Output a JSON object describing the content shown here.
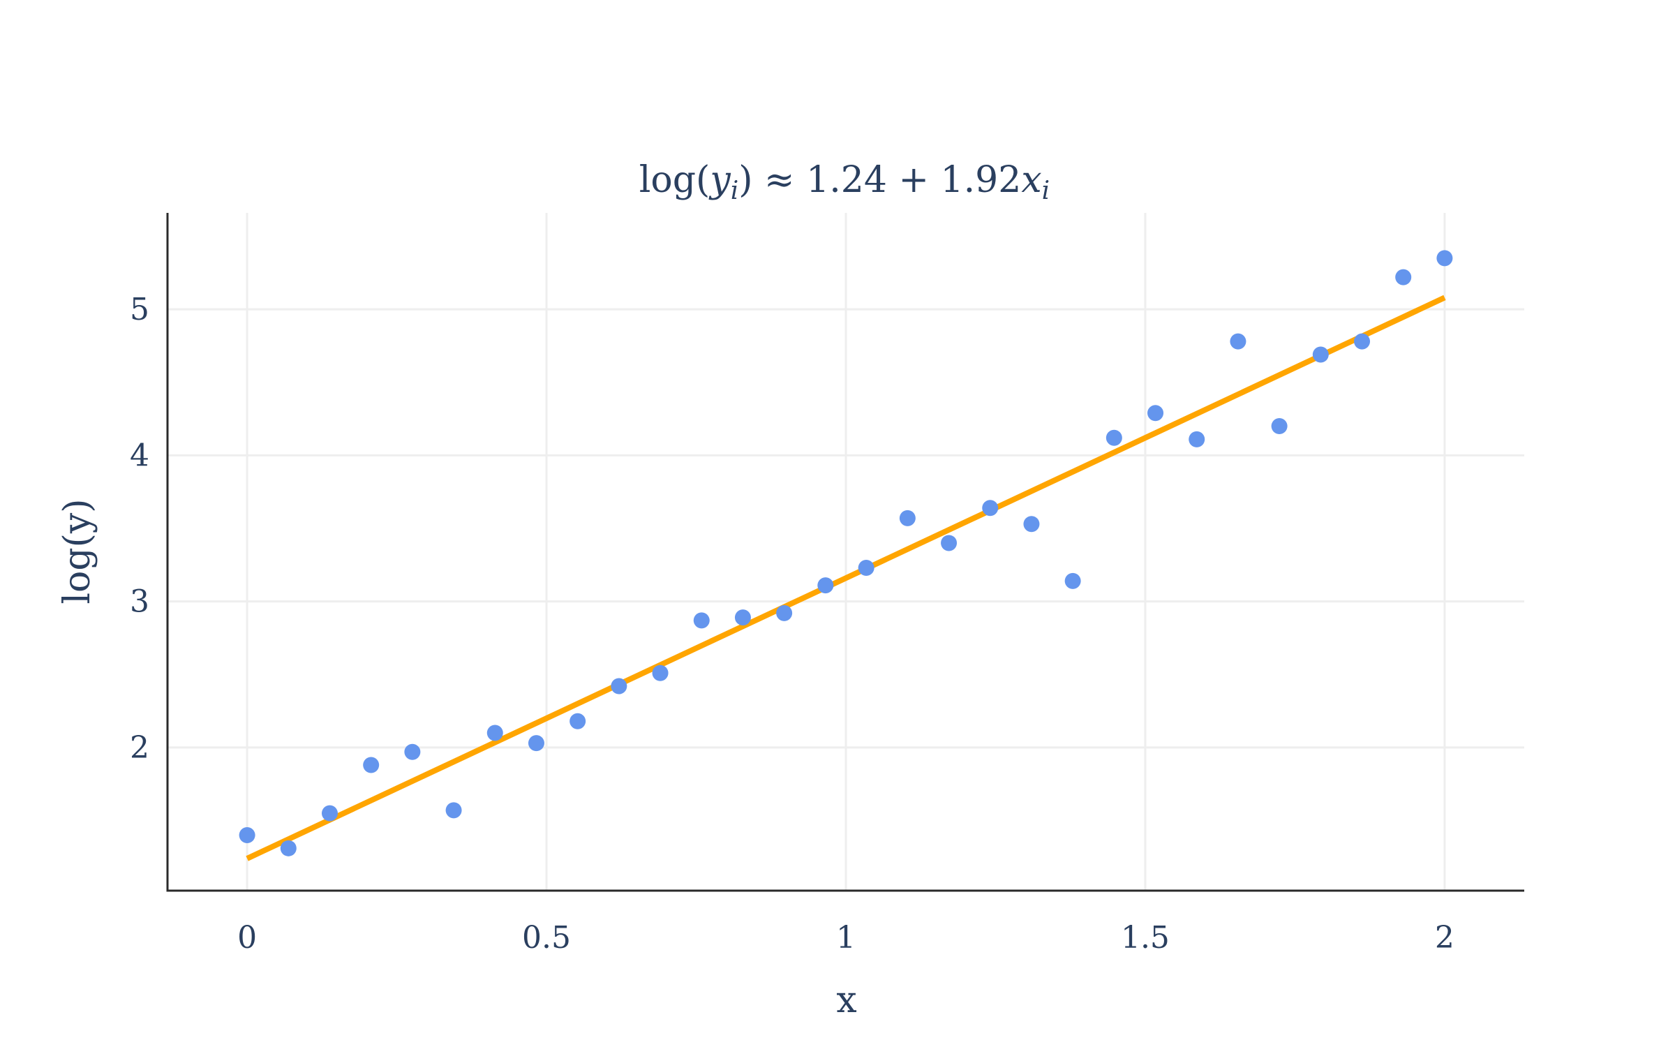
{
  "chart_data": {
    "type": "scatter",
    "title": "log(y_i) ≈ 1.24 + 1.92x_i",
    "title_parts": {
      "lhs_fn": "log(",
      "lhs_var": "y",
      "lhs_sub": "i",
      "lhs_close": ")",
      "rhs_const": " ≈ 1.24 + 1.92",
      "rhs_var": "x",
      "rhs_sub": "i"
    },
    "xlabel": "x",
    "ylabel": "log(y)",
    "xlim": [
      -0.133,
      2.133
    ],
    "ylim": [
      1.02,
      5.66
    ],
    "xticks": [
      0,
      0.5,
      1,
      1.5,
      2
    ],
    "xtick_labels": [
      "0",
      "0.5",
      "1",
      "1.5",
      "2"
    ],
    "yticks": [
      2,
      3,
      4,
      5
    ],
    "ytick_labels": [
      "2",
      "3",
      "4",
      "5"
    ],
    "grid": true,
    "colors": {
      "points": "#6495ed",
      "fit_line": "#ffa500",
      "text": "#2a3f5f"
    },
    "series": [
      {
        "kind": "scatter",
        "x": [
          0,
          0.069,
          0.138,
          0.207,
          0.276,
          0.345,
          0.414,
          0.483,
          0.552,
          0.621,
          0.69,
          0.759,
          0.828,
          0.897,
          0.966,
          1.034,
          1.103,
          1.172,
          1.241,
          1.31,
          1.379,
          1.448,
          1.517,
          1.586,
          1.655,
          1.724,
          1.793,
          1.862,
          1.931,
          2.0
        ],
        "y": [
          1.4,
          1.31,
          1.55,
          1.88,
          1.97,
          1.57,
          2.1,
          2.03,
          2.18,
          2.42,
          2.51,
          2.87,
          2.89,
          2.92,
          3.11,
          3.23,
          3.57,
          3.4,
          3.64,
          3.53,
          3.14,
          4.12,
          4.29,
          4.11,
          4.78,
          4.2,
          4.69,
          4.78,
          5.22,
          5.35
        ]
      },
      {
        "kind": "line",
        "x": [
          0,
          2
        ],
        "y": [
          1.24,
          5.08
        ]
      }
    ]
  }
}
